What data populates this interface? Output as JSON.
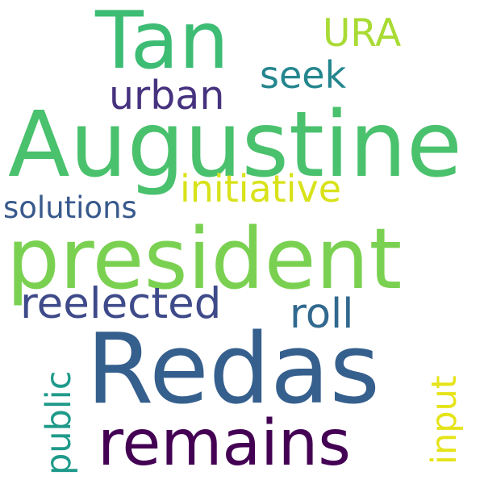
{
  "words": {
    "tan": "Tan",
    "augustine": "Augustine",
    "president": "president",
    "redas": "Redas",
    "remains": "remains",
    "reelected": "reelected",
    "initiative": "initiative",
    "urban": "urban",
    "seek": "seek",
    "ura": "URA",
    "solutions": "solutions",
    "roll": "roll",
    "public": "public",
    "input": "input"
  },
  "colors": {
    "background": "#ffffff",
    "tan": "#3dbc74",
    "augustine": "#4ac16d",
    "president": "#7ad151",
    "redas": "#355f8d",
    "remains": "#440154",
    "reelected": "#3e4a89",
    "initiative": "#d8e219",
    "urban": "#46327e",
    "seek": "#24868e",
    "ura": "#a8db34",
    "solutions": "#38598c",
    "roll": "#31688e",
    "public": "#1f9a8a",
    "input": "#e5e419"
  },
  "vertical_words": [
    "public",
    "input"
  ]
}
